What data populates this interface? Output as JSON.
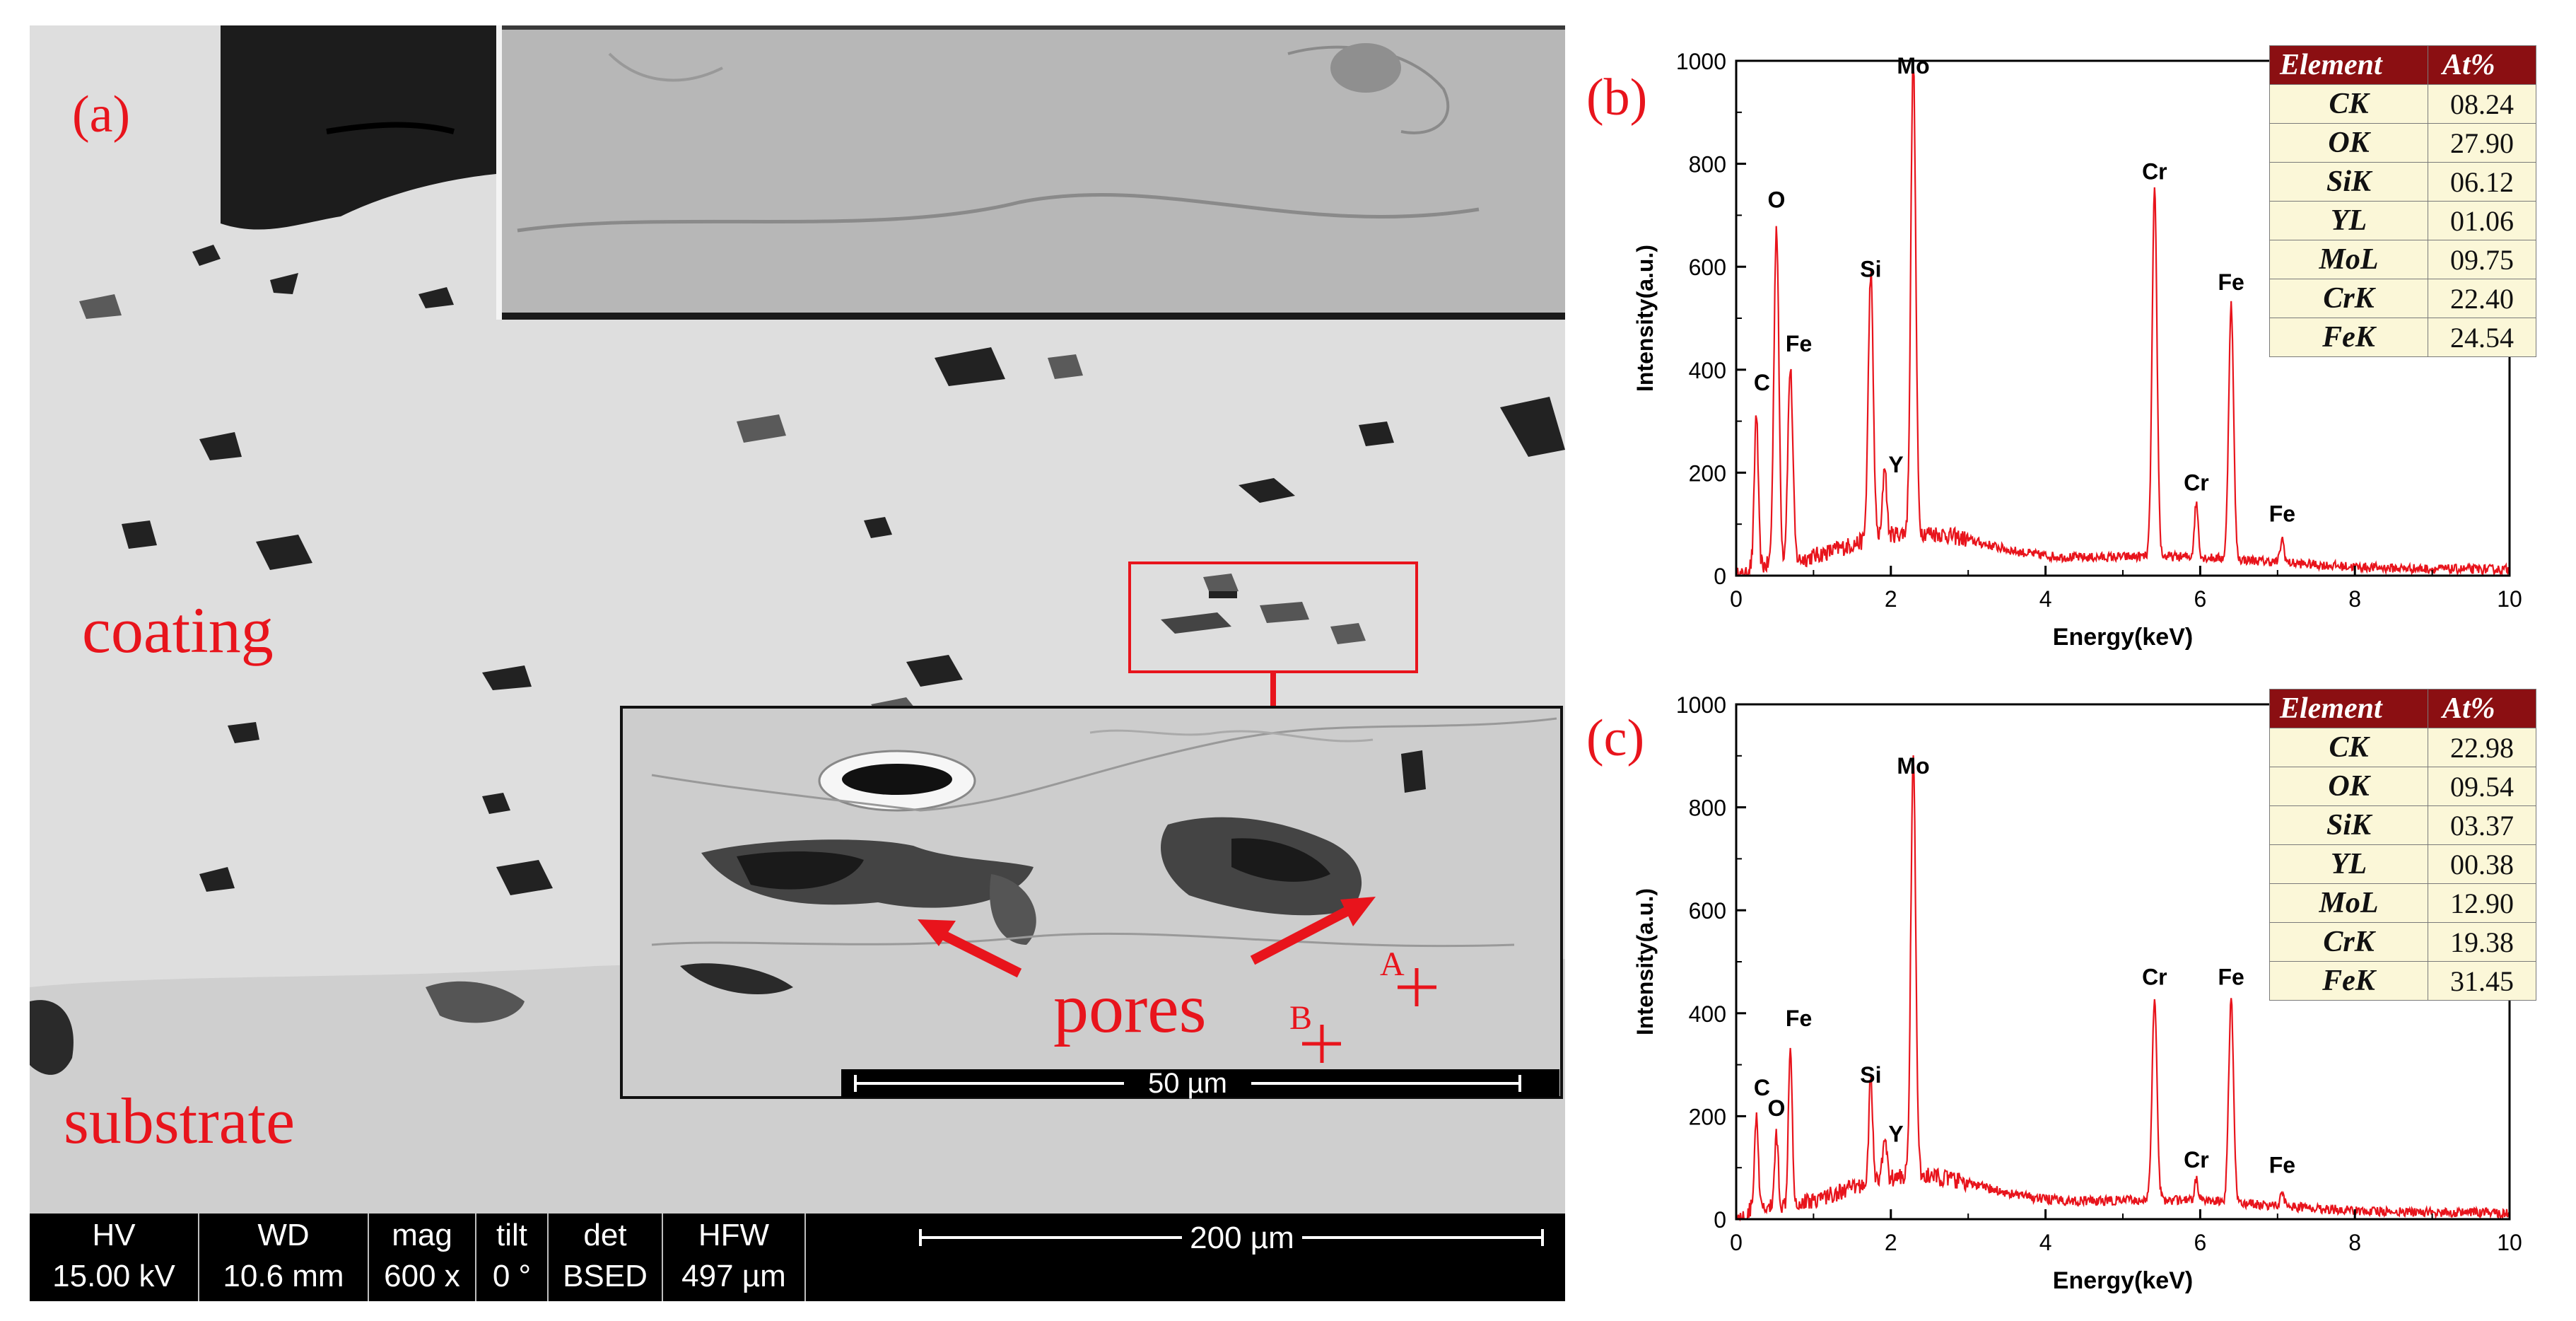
{
  "sem_panel": {
    "panel_label": "(a)",
    "labels": {
      "coating": "coating",
      "substrate": "substrate",
      "pores": "pores",
      "point_a": "A",
      "point_b": "B"
    },
    "inset_scale_bar": "50 µm",
    "main_scale_bar": "200 µm",
    "info_bar": [
      {
        "header": "HV",
        "value": "15.00 kV"
      },
      {
        "header": "WD",
        "value": "10.6 mm"
      },
      {
        "header": "mag",
        "value": "600 x"
      },
      {
        "header": "tilt",
        "value": "0 °"
      },
      {
        "header": "det",
        "value": "BSED"
      },
      {
        "header": "HFW",
        "value": "497 µm"
      }
    ]
  },
  "colors": {
    "accent": "#e8141c",
    "spectrum": "#e8141c",
    "table_header": "#8b0f12",
    "table_cell": "#fbf7d8"
  },
  "chart_data": [
    {
      "type": "line",
      "panel_label": "(b)",
      "xlabel": "Energy(keV)",
      "ylabel": "Intensity(a.u.)",
      "xlim": [
        0,
        10
      ],
      "ylim": [
        0,
        1000
      ],
      "xticks": [
        "0",
        "2",
        "4",
        "6",
        "8",
        "10"
      ],
      "yticks": [
        "0",
        "200",
        "400",
        "600",
        "800",
        "1000"
      ],
      "peaks": [
        {
          "label": "C",
          "x": 0.26,
          "y": 330
        },
        {
          "label": "O",
          "x": 0.52,
          "y": 685
        },
        {
          "label": "Fe",
          "x": 0.7,
          "y": 405
        },
        {
          "label": "Si",
          "x": 1.74,
          "y": 550
        },
        {
          "label": "Y",
          "x": 1.92,
          "y": 170
        },
        {
          "label": "Mo",
          "x": 2.29,
          "y": 945
        },
        {
          "label": "Cr",
          "x": 5.41,
          "y": 740
        },
        {
          "label": "Cr",
          "x": 5.95,
          "y": 135
        },
        {
          "label": "Fe",
          "x": 6.4,
          "y": 525
        },
        {
          "label": "Fe",
          "x": 7.06,
          "y": 75
        }
      ],
      "table": {
        "headers": [
          "Element",
          "At%"
        ],
        "rows": [
          [
            "CK",
            "08.24"
          ],
          [
            "OK",
            "27.90"
          ],
          [
            "SiK",
            "06.12"
          ],
          [
            "YL",
            "01.06"
          ],
          [
            "MoL",
            "09.75"
          ],
          [
            "CrK",
            "22.40"
          ],
          [
            "FeK",
            "24.54"
          ]
        ]
      }
    },
    {
      "type": "line",
      "panel_label": "(c)",
      "xlabel": "Energy(keV)",
      "ylabel": "Intensity(a.u.)",
      "xlim": [
        0,
        10
      ],
      "ylim": [
        0,
        1000
      ],
      "xticks": [
        "0",
        "2",
        "4",
        "6",
        "8",
        "10"
      ],
      "yticks": [
        "0",
        "200",
        "400",
        "600",
        "800",
        "1000"
      ],
      "peaks": [
        {
          "label": "C",
          "x": 0.26,
          "y": 210
        },
        {
          "label": "O",
          "x": 0.52,
          "y": 170
        },
        {
          "label": "Fe",
          "x": 0.7,
          "y": 345
        },
        {
          "label": "Si",
          "x": 1.74,
          "y": 235
        },
        {
          "label": "Y",
          "x": 1.92,
          "y": 120
        },
        {
          "label": "Mo",
          "x": 2.29,
          "y": 835
        },
        {
          "label": "Cr",
          "x": 5.41,
          "y": 425
        },
        {
          "label": "Cr",
          "x": 5.95,
          "y": 70
        },
        {
          "label": "Fe",
          "x": 6.4,
          "y": 425
        },
        {
          "label": "Fe",
          "x": 7.06,
          "y": 60
        }
      ],
      "table": {
        "headers": [
          "Element",
          "At%"
        ],
        "rows": [
          [
            "CK",
            "22.98"
          ],
          [
            "OK",
            "09.54"
          ],
          [
            "SiK",
            "03.37"
          ],
          [
            "YL",
            "00.38"
          ],
          [
            "MoL",
            "12.90"
          ],
          [
            "CrK",
            "19.38"
          ],
          [
            "FeK",
            "31.45"
          ]
        ]
      }
    }
  ]
}
